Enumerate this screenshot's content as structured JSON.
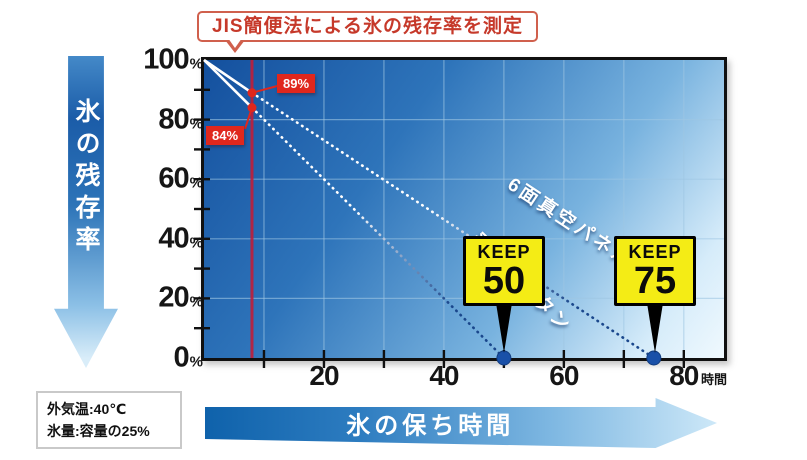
{
  "title": {
    "text": "JIS簡便法による氷の残存率を測定"
  },
  "y_axis": {
    "title": "氷の残存率",
    "unit": "%"
  },
  "x_axis": {
    "title": "氷の保ち時間",
    "unit": "時間"
  },
  "conditions": {
    "line1": "外気温:40℃",
    "line2": "氷量:容量の25%"
  },
  "chart_data": {
    "type": "line",
    "title": "JIS簡便法による氷の残存率を測定",
    "xlabel": "氷の保ち時間 (時間)",
    "ylabel": "氷の残存率 (%)",
    "xlim": [
      0,
      86.7
    ],
    "ylim": [
      0,
      100
    ],
    "xticks_labeled": [
      20,
      40,
      60,
      80
    ],
    "yticks_labeled": [
      100,
      80,
      60,
      40,
      20,
      0
    ],
    "y_unit": "%",
    "x_unit": "時間",
    "grid": {
      "x_lines": [
        10,
        20,
        30,
        40,
        50,
        60,
        70,
        80
      ],
      "y_lines": [
        20,
        40,
        60,
        80
      ],
      "x_minor_ticks": [
        10,
        20,
        30,
        40,
        50,
        60,
        70,
        80
      ],
      "y_minor_ticks": [
        10,
        20,
        30,
        40,
        50,
        60,
        70,
        80,
        90
      ]
    },
    "measure_line_t": 8,
    "series": [
      {
        "name": "6面真空パネル",
        "points": [
          [
            0,
            100
          ],
          [
            8,
            89
          ],
          [
            75,
            0
          ]
        ],
        "measured_index": 1
      },
      {
        "name": "発泡ウレタン",
        "points": [
          [
            0,
            100
          ],
          [
            8,
            84
          ],
          [
            50,
            0
          ]
        ],
        "measured_index": 1
      }
    ],
    "annotations": [
      {
        "t": 8,
        "v": 89,
        "label": "89%"
      },
      {
        "t": 8,
        "v": 84,
        "label": "84%"
      }
    ],
    "keep_badges": [
      {
        "prefix": "KEEP",
        "value": "50",
        "t": 50
      },
      {
        "prefix": "KEEP",
        "value": "75",
        "t": 75
      }
    ]
  },
  "colors": {
    "accent_red": "#e0271d",
    "measure_line": "#bf1e3a",
    "line_white": "#ffffff",
    "line_navy_end": "#1a478c",
    "endpoint_blue": "#1950a8",
    "badge_yellow": "#f4ec15",
    "grid": "#9fc6e2",
    "title_red": "#c6392a",
    "plot_gradient_start": "#14509e",
    "plot_gradient_end": "#f0f9fe"
  }
}
